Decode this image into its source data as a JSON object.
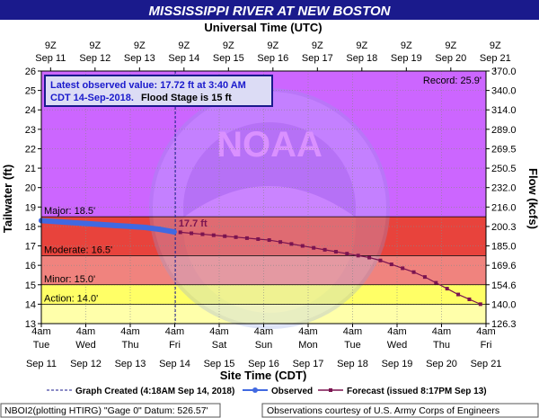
{
  "title": "MISSISSIPPI RIVER AT NEW BOSTON",
  "top_axis_title": "Universal Time (UTC)",
  "bottom_axis_title": "Site Time (CDT)",
  "left_axis_title": "Tailwater (ft)",
  "right_axis_title": "Flow (kcfs)",
  "latest": {
    "line1": "Latest observed value: 17.72 ft at 3:40 AM",
    "line2_prefix": "CDT 14-Sep-2018.",
    "line2_suffix": "Flood Stage is 15 ft"
  },
  "record_label": "Record: 25.9'",
  "watermark": "NOAA",
  "colors": {
    "title_bg": "#1a1a8c",
    "major": "#e8433c",
    "moderate": "#f0837e",
    "minor": "#ffff66",
    "action": "#ffffaa",
    "above_record": "#cc66ff",
    "observed": "#4169e1",
    "forecast": "#7b1450"
  },
  "legend": {
    "graph_created": "Graph Created (4:18AM Sep 14, 2018)",
    "observed": "Observed",
    "forecast": "Forecast (issued 8:17PM Sep 13)"
  },
  "footer": {
    "left": "NBOI2(plotting HTIRG) \"Gage 0\" Datum: 526.57'",
    "right": "Observations courtesy of U.S. Army Corps of Engineers"
  },
  "chart_data": {
    "type": "line",
    "title": "MISSISSIPPI RIVER AT NEW BOSTON",
    "xlabel": "Site Time (CDT)",
    "ylabel": "Tailwater (ft)",
    "y2label": "Flow (kcfs)",
    "ylim": [
      13,
      26
    ],
    "y_ticks": [
      13,
      14,
      15,
      16,
      17,
      18,
      19,
      20,
      21,
      22,
      23,
      24,
      25,
      26
    ],
    "x_range": [
      "2018-09-11 04:00",
      "2018-09-21 04:00"
    ],
    "bottom_ticks": [
      {
        "time": "4am",
        "day": "Tue",
        "date": "Sep 11"
      },
      {
        "time": "4am",
        "day": "Wed",
        "date": "Sep 12"
      },
      {
        "time": "4am",
        "day": "Thu",
        "date": "Sep 13"
      },
      {
        "time": "4am",
        "day": "Fri",
        "date": "Sep 14"
      },
      {
        "time": "4am",
        "day": "Sat",
        "date": "Sep 15"
      },
      {
        "time": "4am",
        "day": "Sun",
        "date": "Sep 16"
      },
      {
        "time": "4am",
        "day": "Mon",
        "date": "Sep 17"
      },
      {
        "time": "4am",
        "day": "Tue",
        "date": "Sep 18"
      },
      {
        "time": "4am",
        "day": "Wed",
        "date": "Sep 19"
      },
      {
        "time": "4am",
        "day": "Thu",
        "date": "Sep 20"
      },
      {
        "time": "4am",
        "day": "Fri",
        "date": "Sep 21"
      }
    ],
    "top_ticks": [
      {
        "time": "9Z",
        "date": "Sep 11"
      },
      {
        "time": "9Z",
        "date": "Sep 12"
      },
      {
        "time": "9Z",
        "date": "Sep 13"
      },
      {
        "time": "9Z",
        "date": "Sep 14"
      },
      {
        "time": "9Z",
        "date": "Sep 15"
      },
      {
        "time": "9Z",
        "date": "Sep 16"
      },
      {
        "time": "9Z",
        "date": "Sep 17"
      },
      {
        "time": "9Z",
        "date": "Sep 18"
      },
      {
        "time": "9Z",
        "date": "Sep 19"
      },
      {
        "time": "9Z",
        "date": "Sep 20"
      },
      {
        "time": "9Z",
        "date": "Sep 21"
      }
    ],
    "flow_ticks": [
      {
        "stage": 13,
        "label": "126.3"
      },
      {
        "stage": 14,
        "label": "140.0"
      },
      {
        "stage": 15,
        "label": "154.6"
      },
      {
        "stage": 16,
        "label": "169.6"
      },
      {
        "stage": 17,
        "label": "185.0"
      },
      {
        "stage": 18,
        "label": "200.3"
      },
      {
        "stage": 19,
        "label": "216.0"
      },
      {
        "stage": 20,
        "label": "232.0"
      },
      {
        "stage": 21,
        "label": "250.5"
      },
      {
        "stage": 22,
        "label": "269.5"
      },
      {
        "stage": 23,
        "label": "289.0"
      },
      {
        "stage": 24,
        "label": "314.0"
      },
      {
        "stage": 25,
        "label": "340.0"
      },
      {
        "stage": 26,
        "label": "370.0"
      }
    ],
    "flood_categories": [
      {
        "name": "Major",
        "label": "Major: 18.5'",
        "value": 18.5
      },
      {
        "name": "Moderate",
        "label": "Moderate: 16.5'",
        "value": 16.5
      },
      {
        "name": "Minor",
        "label": "Minor: 15.0'",
        "value": 15.0
      },
      {
        "name": "Action",
        "label": "Action: 14.0'",
        "value": 14.0
      }
    ],
    "record": 25.9,
    "graph_created": "2018-09-14 04:18",
    "observed_label": "17.7 ft",
    "series": [
      {
        "name": "Observed",
        "points": [
          [
            "2018-09-11 04:00",
            18.3
          ],
          [
            "2018-09-11 12:00",
            18.25
          ],
          [
            "2018-09-11 20:00",
            18.2
          ],
          [
            "2018-09-12 04:00",
            18.15
          ],
          [
            "2018-09-12 12:00",
            18.1
          ],
          [
            "2018-09-12 20:00",
            18.05
          ],
          [
            "2018-09-13 04:00",
            18.0
          ],
          [
            "2018-09-13 12:00",
            17.95
          ],
          [
            "2018-09-13 20:00",
            17.85
          ],
          [
            "2018-09-14 03:40",
            17.72
          ]
        ]
      },
      {
        "name": "Forecast",
        "points": [
          [
            "2018-09-14 07:00",
            17.7
          ],
          [
            "2018-09-14 13:00",
            17.65
          ],
          [
            "2018-09-14 19:00",
            17.6
          ],
          [
            "2018-09-15 01:00",
            17.55
          ],
          [
            "2018-09-15 07:00",
            17.5
          ],
          [
            "2018-09-15 13:00",
            17.45
          ],
          [
            "2018-09-15 19:00",
            17.4
          ],
          [
            "2018-09-16 01:00",
            17.35
          ],
          [
            "2018-09-16 07:00",
            17.3
          ],
          [
            "2018-09-16 13:00",
            17.2
          ],
          [
            "2018-09-16 19:00",
            17.1
          ],
          [
            "2018-09-17 01:00",
            17.0
          ],
          [
            "2018-09-17 07:00",
            16.9
          ],
          [
            "2018-09-17 13:00",
            16.8
          ],
          [
            "2018-09-17 19:00",
            16.7
          ],
          [
            "2018-09-18 01:00",
            16.6
          ],
          [
            "2018-09-18 07:00",
            16.5
          ],
          [
            "2018-09-18 13:00",
            16.4
          ],
          [
            "2018-09-18 19:00",
            16.25
          ],
          [
            "2018-09-19 01:00",
            16.05
          ],
          [
            "2018-09-19 07:00",
            15.85
          ],
          [
            "2018-09-19 13:00",
            15.65
          ],
          [
            "2018-09-19 19:00",
            15.4
          ],
          [
            "2018-09-20 01:00",
            15.1
          ],
          [
            "2018-09-20 07:00",
            14.8
          ],
          [
            "2018-09-20 13:00",
            14.5
          ],
          [
            "2018-09-20 19:00",
            14.25
          ],
          [
            "2018-09-21 01:00",
            14.0
          ]
        ]
      }
    ]
  }
}
